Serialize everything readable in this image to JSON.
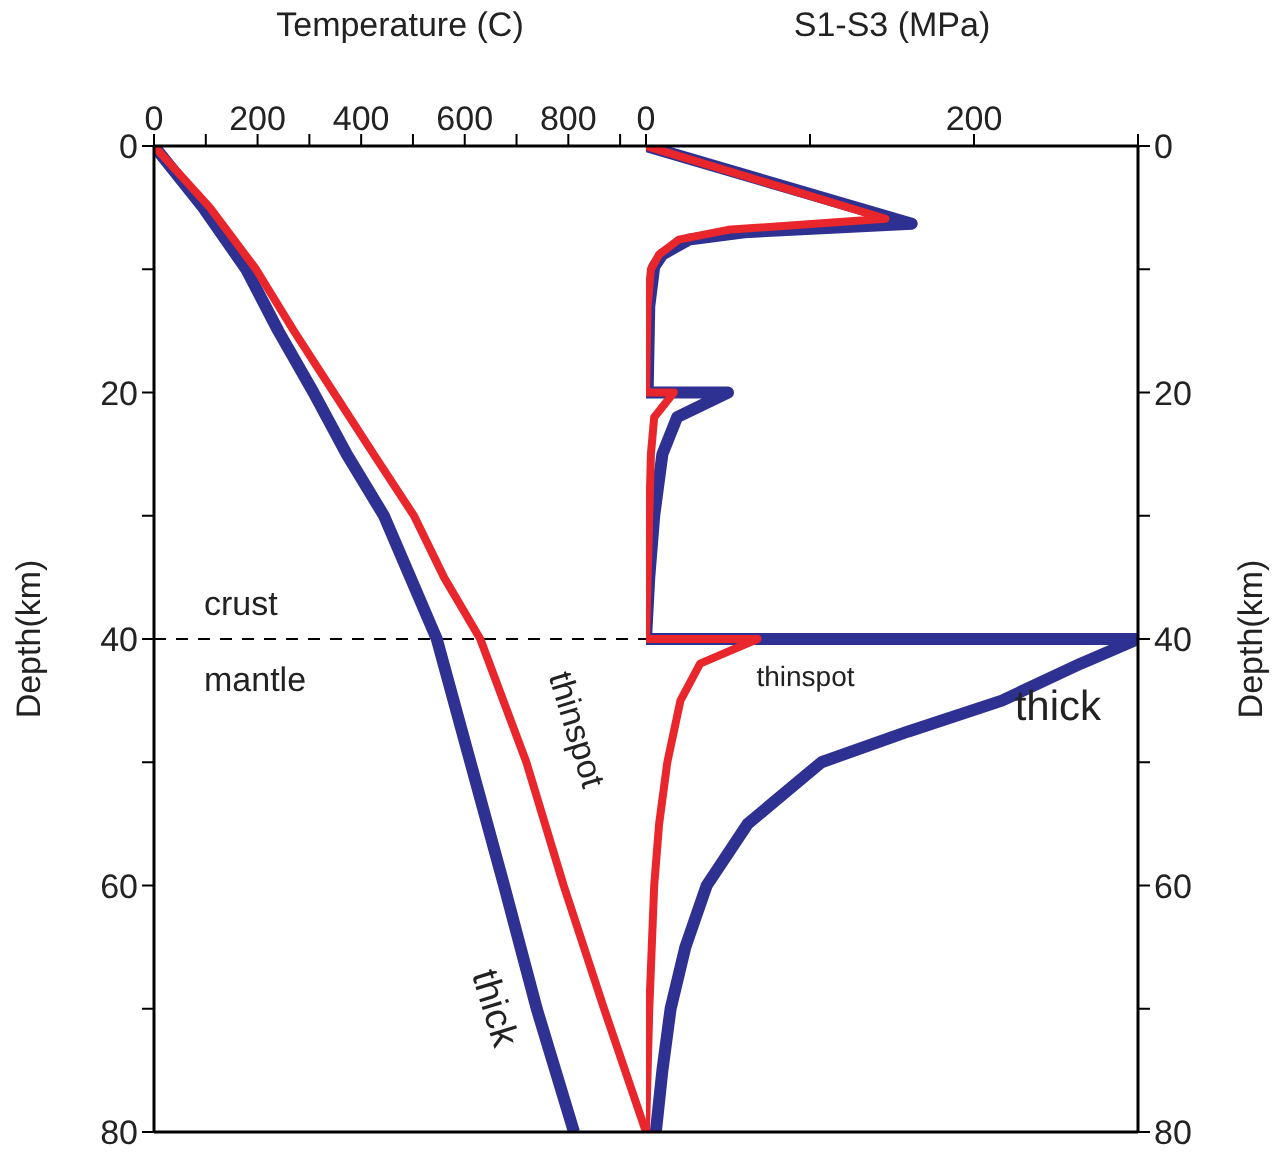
{
  "chart_data": [
    {
      "type": "line",
      "xlabel": "Temperature (C)",
      "ylabel": "Depth(km)",
      "xlim": [
        0,
        950
      ],
      "xticks": [
        0,
        {
          "value": 100,
          "label": null
        },
        200,
        {
          "value": 300,
          "label": null
        },
        400,
        {
          "value": 500,
          "label": null
        },
        600,
        {
          "value": 700,
          "label": null
        },
        800,
        {
          "value": 900,
          "label": null
        }
      ],
      "ylim": [
        80,
        0
      ],
      "yticks": [
        0,
        {
          "value": 10,
          "label": null
        },
        20,
        {
          "value": 30,
          "label": null
        },
        40,
        {
          "value": 50,
          "label": null
        },
        60,
        {
          "value": 70,
          "label": null
        },
        80
      ],
      "ref_lines": [
        {
          "axis": "y",
          "value": 40,
          "color": "#000000",
          "line_style": "dashed"
        }
      ],
      "annotations": [
        "crust",
        "mantle"
      ],
      "series": [
        {
          "name": "thick",
          "color": "#2e3192",
          "x": [
            0,
            95,
            178,
            240,
            308,
            372,
            444,
            495,
            546,
            611,
            676,
            739,
            811
          ],
          "values": [
            0,
            5,
            10,
            15,
            20,
            25,
            30,
            35,
            40,
            50,
            60,
            70,
            80
          ]
        },
        {
          "name": "thinspot",
          "color": "#e8262b",
          "x": [
            0,
            108,
            197,
            270,
            347,
            424,
            502,
            560,
            630,
            719,
            791,
            869,
            950
          ],
          "values": [
            0,
            5,
            10,
            15,
            20,
            25,
            30,
            35,
            40,
            50,
            60,
            70,
            80
          ]
        }
      ]
    },
    {
      "type": "line",
      "xlabel": "S1-S3 (MPa)",
      "ylabel": "Depth(km)",
      "xlim": [
        0,
        300
      ],
      "xticks": [
        0,
        {
          "value": 100,
          "label": null
        },
        200,
        {
          "value": 300,
          "label": null
        }
      ],
      "ylim": [
        80,
        0
      ],
      "yticks": [
        0,
        {
          "value": 10,
          "label": null
        },
        20,
        {
          "value": 30,
          "label": null
        },
        40,
        {
          "value": 50,
          "label": null
        },
        60,
        {
          "value": 70,
          "label": null
        },
        80
      ],
      "series": [
        {
          "name": "thick",
          "color": "#2e3192",
          "x": [
            0,
            162,
            60,
            26,
            10,
            5,
            2,
            1,
            50,
            19,
            10,
            5,
            2,
            0,
            300,
            265,
            217,
            160,
            107,
            62,
            37,
            24,
            15,
            10,
            6
          ],
          "values": [
            0,
            6.3,
            7,
            7.6,
            8.8,
            9.8,
            13,
            20,
            20,
            22,
            25,
            30,
            35,
            40,
            40,
            42,
            45,
            47.5,
            50,
            55,
            60,
            65,
            70,
            75,
            80
          ]
        },
        {
          "name": "thinspot",
          "color": "#e8262b",
          "x": [
            0,
            146,
            50,
            20,
            8,
            3,
            1,
            0,
            17,
            5,
            3,
            2,
            1,
            0,
            68,
            33,
            21,
            13,
            8,
            5,
            2,
            0
          ],
          "values": [
            0,
            5.9,
            6.8,
            7.6,
            8.8,
            10,
            13,
            20,
            20,
            22,
            25,
            30,
            35,
            40,
            40,
            42,
            45,
            50,
            55,
            60,
            70,
            80
          ]
        }
      ]
    }
  ]
}
